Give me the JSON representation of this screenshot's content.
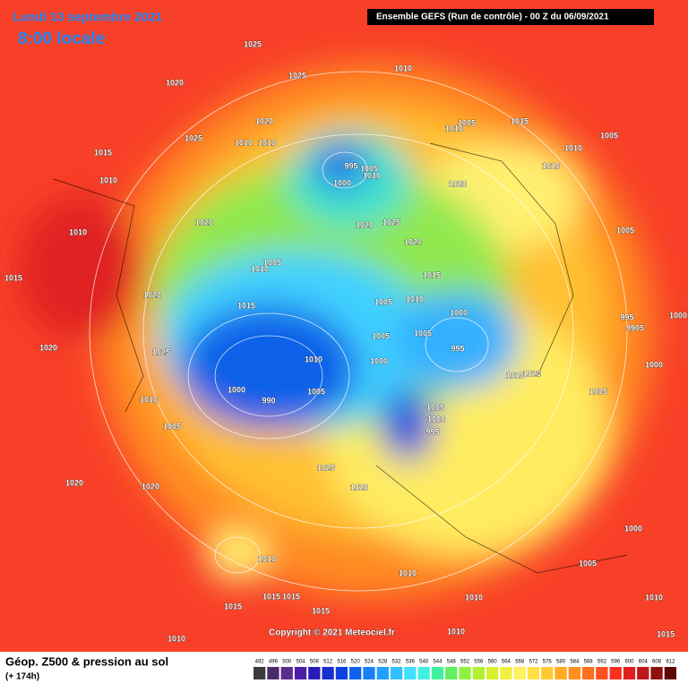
{
  "header": {
    "date": "Lundi 13 septembre 2021",
    "time": "8:00 locale",
    "run": "Ensemble GEFS  (Run de contrôle)  -  00 Z du 06/09/2021"
  },
  "copyright": "Copyright © 2021 Meteociel.fr",
  "footer": {
    "title": "Géop. Z500 & pression au sol",
    "lead": "(+ 174h)"
  },
  "colorbar": [
    492,
    496,
    500,
    504,
    508,
    512,
    516,
    520,
    524,
    528,
    532,
    536,
    540,
    544,
    548,
    552,
    556,
    560,
    564,
    568,
    572,
    576,
    580,
    584,
    588,
    592,
    596,
    600,
    604,
    608,
    612
  ],
  "isobar_labels": [
    1025,
    1025,
    1010,
    1020,
    1020,
    1025,
    1010,
    1010,
    1015,
    1010,
    1005,
    1015,
    1010,
    1005,
    1010,
    1010,
    995,
    1000,
    1005,
    1010,
    1020,
    1020,
    1020,
    1025,
    1020,
    1010,
    1005,
    1005,
    1010,
    1015,
    1015,
    1020,
    1010,
    1005,
    1000,
    995,
    9905,
    1000,
    1015,
    1005,
    1005,
    995,
    1020,
    1025,
    1010,
    1000,
    1000,
    1020,
    1015,
    1000,
    990,
    1005,
    1005,
    1010,
    1005,
    1000,
    995,
    1005,
    1025,
    1020,
    1020,
    1020,
    1000,
    1010,
    1005,
    1010,
    1015,
    1015,
    1010,
    1010,
    1015,
    1015,
    1010,
    1010,
    1015
  ]
}
